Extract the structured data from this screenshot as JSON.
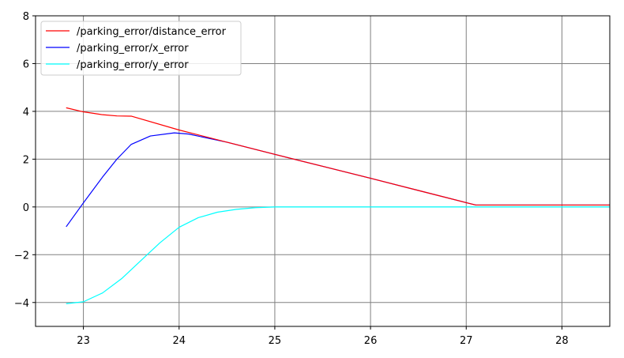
{
  "chart_data": {
    "type": "line",
    "title": "",
    "xlabel": "",
    "ylabel": "",
    "xlim": [
      22.5,
      28.5
    ],
    "ylim": [
      -5,
      8
    ],
    "x_ticks": [
      23,
      24,
      25,
      26,
      27,
      28
    ],
    "y_ticks": [
      -4,
      -2,
      0,
      2,
      4,
      6,
      8
    ],
    "x_tick_labels": [
      "23",
      "24",
      "25",
      "26",
      "27",
      "28"
    ],
    "y_tick_labels": [
      "−4",
      "−2",
      "0",
      "2",
      "4",
      "6",
      "8"
    ],
    "grid": true,
    "legend_position": "top-left",
    "series": [
      {
        "name": "/parking_error/distance_error",
        "color": "#ff0000",
        "x": [
          22.82,
          23.0,
          23.2,
          23.35,
          23.5,
          24.0,
          24.5,
          25.0,
          25.5,
          26.0,
          26.5,
          27.0,
          27.1,
          27.5,
          28.0,
          28.5
        ],
        "y": [
          4.15,
          3.98,
          3.86,
          3.81,
          3.8,
          3.22,
          2.71,
          2.2,
          1.7,
          1.2,
          0.69,
          0.18,
          0.08,
          0.08,
          0.08,
          0.08
        ]
      },
      {
        "name": "/parking_error/x_error",
        "color": "#0000ff",
        "x": [
          22.82,
          23.0,
          23.2,
          23.35,
          23.5,
          23.7,
          23.95,
          24.1,
          24.5,
          25.0,
          25.5,
          26.0,
          26.5,
          27.0,
          27.1,
          27.5,
          28.0,
          28.5
        ],
        "y": [
          -0.83,
          0.17,
          1.25,
          2.0,
          2.62,
          2.97,
          3.1,
          3.05,
          2.71,
          2.2,
          1.7,
          1.2,
          0.69,
          0.18,
          0.08,
          0.08,
          0.08,
          0.08
        ]
      },
      {
        "name": "/parking_error/y_error",
        "color": "#00ffff",
        "x": [
          22.82,
          23.0,
          23.2,
          23.4,
          23.6,
          23.8,
          24.0,
          24.2,
          24.4,
          24.6,
          24.8,
          25.0,
          25.5,
          26.0,
          27.0,
          28.0,
          28.5
        ],
        "y": [
          -4.05,
          -3.97,
          -3.6,
          -3.0,
          -2.25,
          -1.5,
          -0.85,
          -0.45,
          -0.22,
          -0.1,
          -0.03,
          0.0,
          0.0,
          0.0,
          0.0,
          0.0,
          0.0
        ]
      }
    ]
  }
}
